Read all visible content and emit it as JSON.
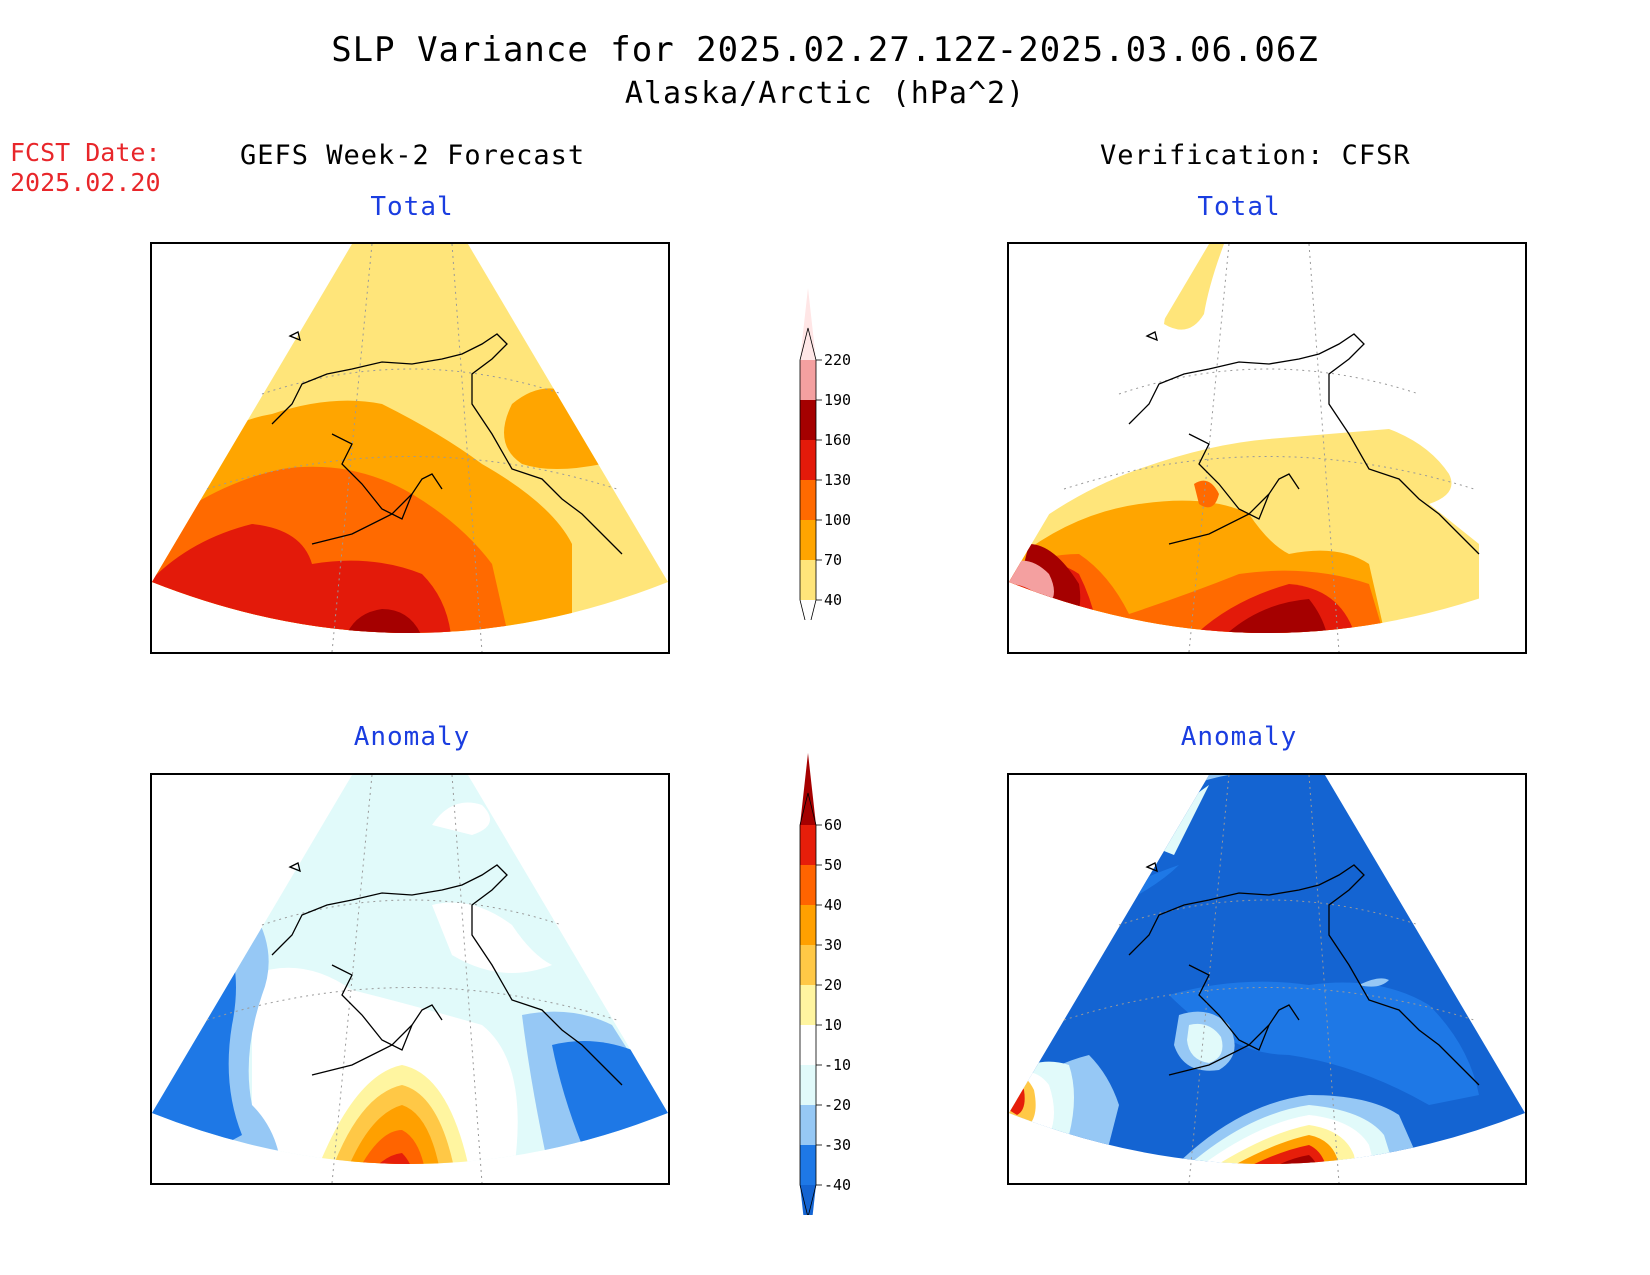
{
  "header": {
    "title": "SLP Variance for 2025.02.27.12Z-2025.03.06.06Z",
    "subtitle": "Alaska/Arctic (hPa^2)",
    "fcst_date_label": "FCST Date:",
    "fcst_date_value": "2025.02.20",
    "left_column": "GEFS Week-2 Forecast",
    "right_column": "Verification: CFSR"
  },
  "panels": {
    "forecast_total": {
      "title": "Total"
    },
    "verification_total": {
      "title": "Total"
    },
    "forecast_anomaly": {
      "title": "Anomaly"
    },
    "verification_anomaly": {
      "title": "Anomaly"
    }
  },
  "colorbars": {
    "total": {
      "levels": [
        "40",
        "70",
        "100",
        "130",
        "160",
        "190",
        "220"
      ],
      "colors": [
        "#ffffff",
        "#ffe57a",
        "#ffa500",
        "#ff6a00",
        "#e31a0a",
        "#a50000",
        "#f4a0a0",
        "#ffe6e6"
      ]
    },
    "anomaly": {
      "levels": [
        "-40",
        "-30",
        "-20",
        "-10",
        "10",
        "20",
        "30",
        "40",
        "50",
        "60"
      ],
      "colors": [
        "#1464d2",
        "#1e78e6",
        "#96c8f5",
        "#e1fafa",
        "#ffffff",
        "#fff5a0",
        "#ffc846",
        "#ffa000",
        "#ff6400",
        "#e61e0a",
        "#a50000"
      ]
    }
  }
}
